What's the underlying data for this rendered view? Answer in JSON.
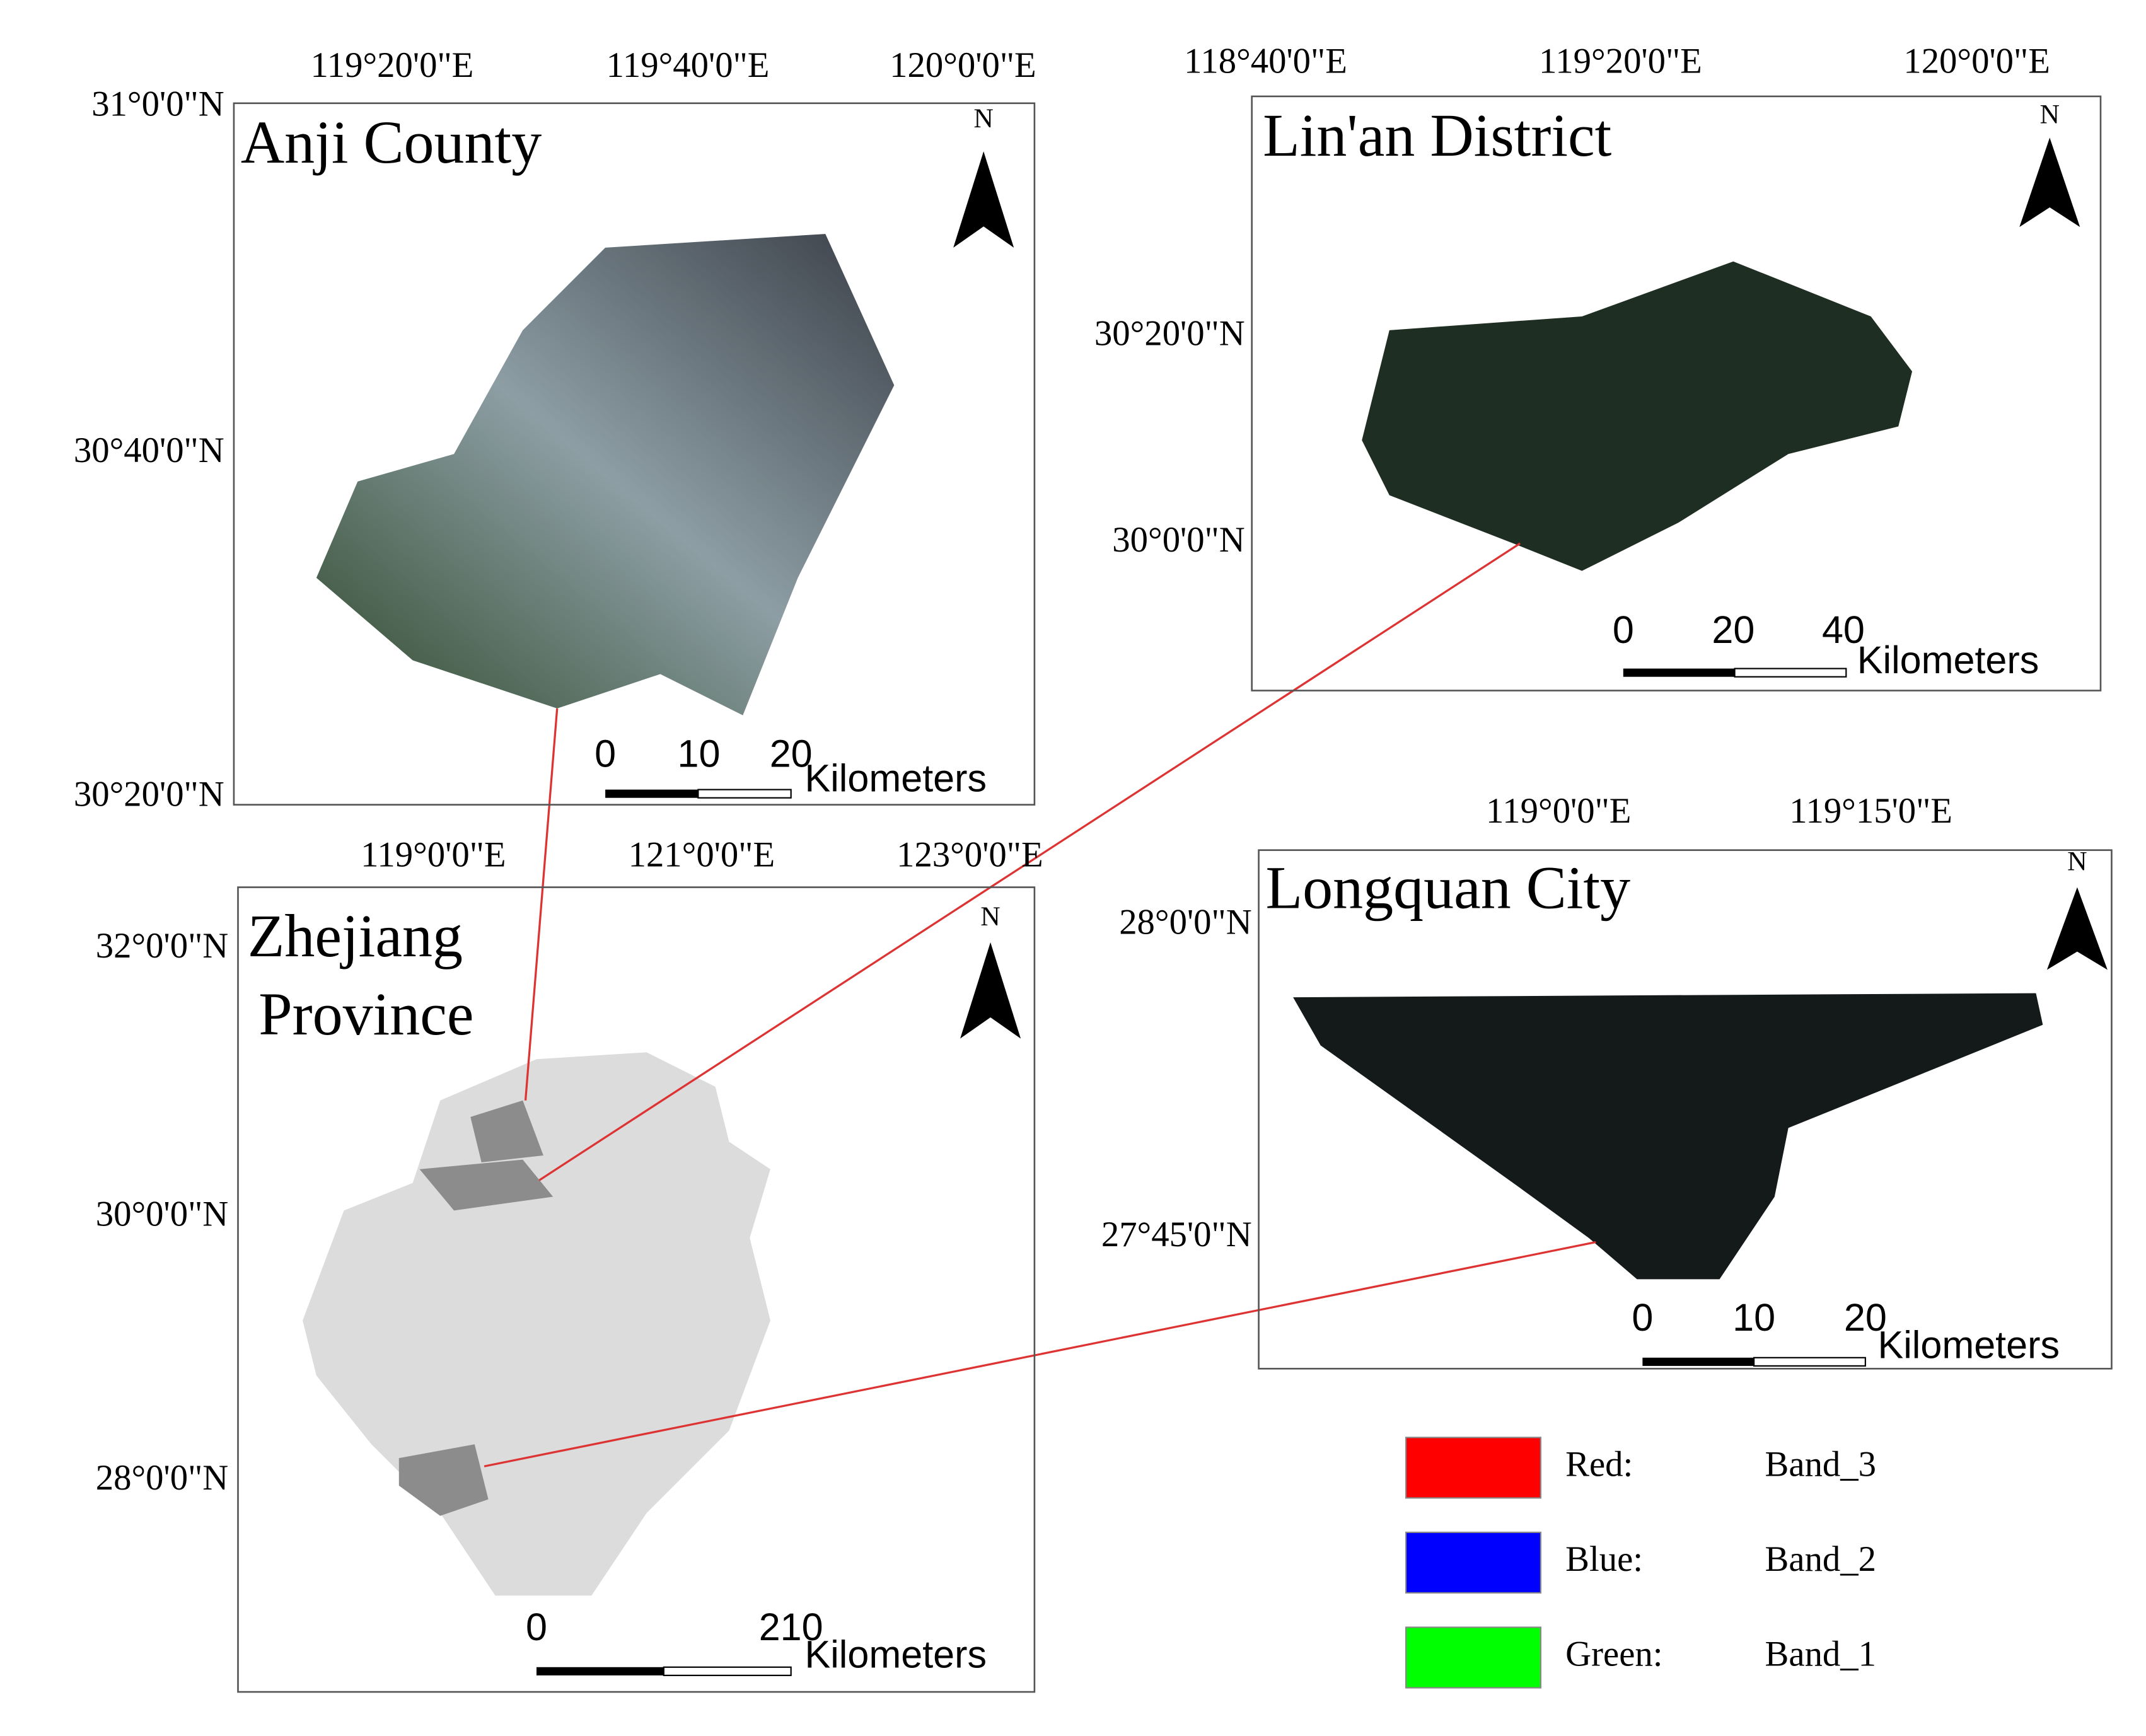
{
  "panels": [
    {
      "title": [
        "Anji County"
      ],
      "lon_labels": [
        "119°20'0\"E",
        "119°40'0\"E",
        "120°0'0\"E"
      ],
      "lat_labels": [
        "31°0'0\"N",
        "30°40'0\"N",
        "30°20'0\"N"
      ],
      "north": "N",
      "scale_labels": [
        "0",
        "10",
        "20"
      ],
      "scale_unit": "Kilometers"
    },
    {
      "title": [
        "Lin'an District"
      ],
      "lon_labels": [
        "118°40'0\"E",
        "119°20'0\"E",
        "120°0'0\"E"
      ],
      "lat_labels": [
        "30°20'0\"N",
        "30°0'0\"N"
      ],
      "north": "N",
      "scale_labels": [
        "0",
        "20",
        "40"
      ],
      "scale_unit": "Kilometers"
    },
    {
      "title": [
        "Longquan City"
      ],
      "lon_labels": [
        "119°0'0\"E",
        "119°15'0\"E"
      ],
      "lat_labels": [
        "28°0'0\"N",
        "27°45'0\"N"
      ],
      "north": "N",
      "scale_labels": [
        "0",
        "10",
        "20"
      ],
      "scale_unit": "Kilometers"
    },
    {
      "title": [
        "Zhejiang",
        "Province"
      ],
      "lon_labels": [
        "119°0'0\"E",
        "121°0'0\"E",
        "123°0'0\"E"
      ],
      "lat_labels": [
        "32°0'0\"N",
        "30°0'0\"N",
        "28°0'0\"N"
      ],
      "north": "N",
      "scale_labels": [
        "0",
        "210"
      ],
      "scale_unit": "Kilometers"
    }
  ],
  "legend": [
    {
      "channel": "Red:",
      "band": "Band_3",
      "color": "#ff0000"
    },
    {
      "channel": "Blue:",
      "band": "Band_2",
      "color": "#0000ff"
    },
    {
      "channel": "Green:",
      "band": "Band_1",
      "color": "#00ff00"
    }
  ]
}
